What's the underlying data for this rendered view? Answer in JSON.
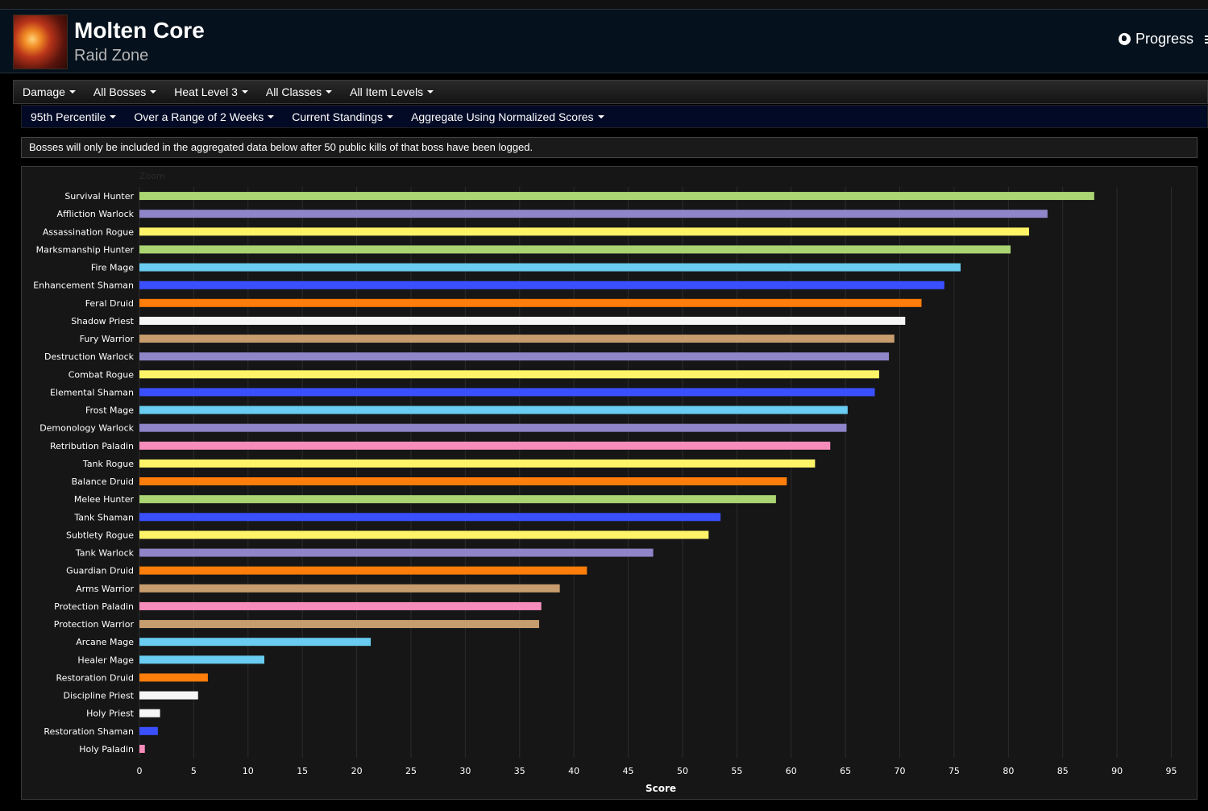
{
  "header": {
    "title": "Molten Core",
    "subtitle": "Raid Zone",
    "progress_label": "Progress"
  },
  "filters_row1": [
    {
      "label": "Damage"
    },
    {
      "label": "All Bosses"
    },
    {
      "label": "Heat Level 3"
    },
    {
      "label": "All Classes"
    },
    {
      "label": "All Item Levels"
    }
  ],
  "filters_row2": [
    {
      "label": "95th Percentile"
    },
    {
      "label": "Over a Range of 2 Weeks"
    },
    {
      "label": "Current Standings"
    },
    {
      "label": "Aggregate Using Normalized Scores"
    }
  ],
  "notice": "Bosses will only be included in the aggregated data below after 50 public kills of that boss have been logged.",
  "chart_data": {
    "type": "bar",
    "orientation": "horizontal",
    "zoom_label": "Zoom",
    "xlabel": "Score",
    "xlim": [
      0,
      96
    ],
    "xticks": [
      0,
      5,
      10,
      15,
      20,
      25,
      30,
      35,
      40,
      45,
      50,
      55,
      60,
      65,
      70,
      75,
      80,
      85,
      90,
      95
    ],
    "grid": true,
    "categories": [
      "Survival Hunter",
      "Affliction Warlock",
      "Assassination Rogue",
      "Marksmanship Hunter",
      "Fire Mage",
      "Enhancement Shaman",
      "Feral Druid",
      "Shadow Priest",
      "Fury Warrior",
      "Destruction Warlock",
      "Combat Rogue",
      "Elemental Shaman",
      "Frost Mage",
      "Demonology Warlock",
      "Retribution Paladin",
      "Tank Rogue",
      "Balance Druid",
      "Melee Hunter",
      "Tank Shaman",
      "Subtlety Rogue",
      "Tank Warlock",
      "Guardian Druid",
      "Arms Warrior",
      "Protection Paladin",
      "Protection Warrior",
      "Arcane Mage",
      "Healer Mage",
      "Restoration Druid",
      "Discipline Priest",
      "Holy Priest",
      "Restoration Shaman",
      "Holy Paladin"
    ],
    "values": [
      87.9,
      83.6,
      81.9,
      80.2,
      75.6,
      74.1,
      72.0,
      70.5,
      69.5,
      69.0,
      68.1,
      67.7,
      65.2,
      65.1,
      63.6,
      62.2,
      59.6,
      58.6,
      53.5,
      52.4,
      47.3,
      41.2,
      38.7,
      37.0,
      36.8,
      21.3,
      11.5,
      6.3,
      5.4,
      1.9,
      1.7,
      0.5
    ],
    "colors": [
      "#abd473",
      "#8f85c9",
      "#fff468",
      "#abd473",
      "#69ccf0",
      "#3a50ff",
      "#ff7d0a",
      "#f5f5f5",
      "#c79c6e",
      "#8f85c9",
      "#fff468",
      "#3a50ff",
      "#69ccf0",
      "#8f85c9",
      "#f58cba",
      "#fff468",
      "#ff7d0a",
      "#abd473",
      "#3a50ff",
      "#fff468",
      "#8f85c9",
      "#ff7d0a",
      "#c79c6e",
      "#f58cba",
      "#c79c6e",
      "#69ccf0",
      "#69ccf0",
      "#ff7d0a",
      "#f5f5f5",
      "#f5f5f5",
      "#3a50ff",
      "#f58cba"
    ]
  }
}
